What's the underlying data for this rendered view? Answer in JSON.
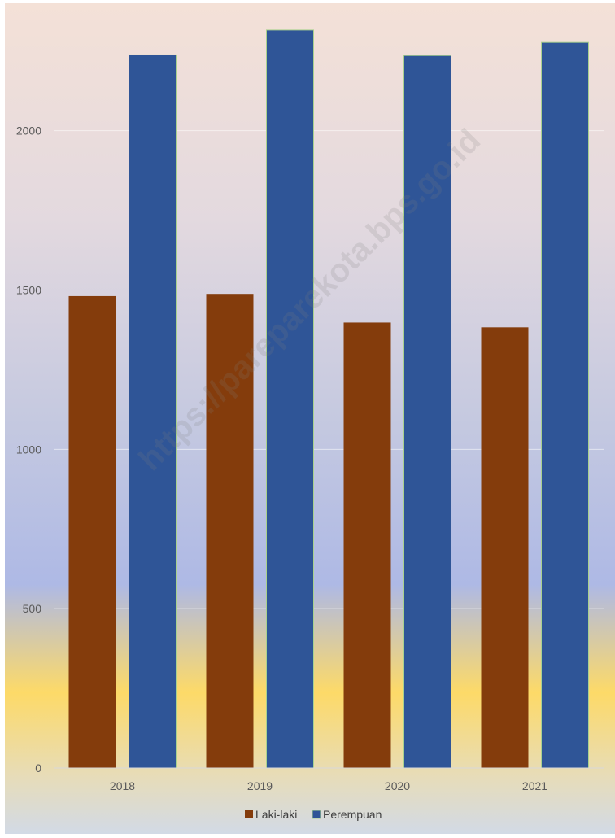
{
  "watermark": "https://pareparekota.bps.go.id",
  "chart_data": {
    "type": "bar",
    "categories": [
      "2018",
      "2019",
      "2020",
      "2021"
    ],
    "series": [
      {
        "name": "Laki-laki",
        "color": "#843C0C",
        "values": [
          1481,
          1488,
          1398,
          1383
        ]
      },
      {
        "name": "Perempuan",
        "color": "#2F5597",
        "values": [
          2238,
          2316,
          2236,
          2277
        ]
      }
    ],
    "ylim": [
      0,
      2400
    ],
    "yticks": [
      0,
      500,
      1000,
      1500,
      2000
    ],
    "ytick_labels": [
      "0",
      "500",
      "1000",
      "1500",
      "2000"
    ],
    "grid": true,
    "legend_position": "bottom",
    "title": "",
    "xlabel": "",
    "ylabel": ""
  }
}
